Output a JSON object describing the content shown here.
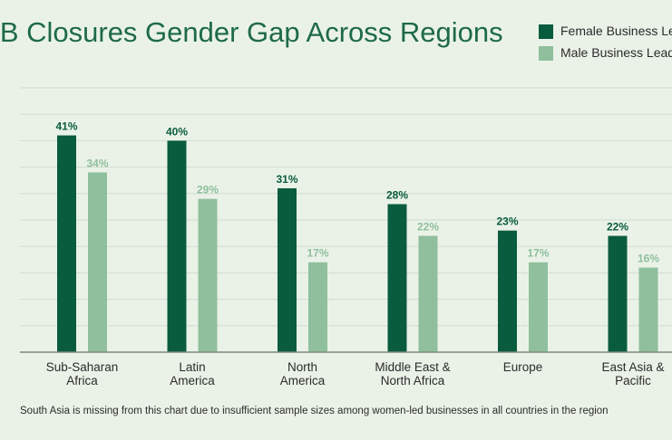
{
  "chart_data": {
    "type": "bar",
    "title": "MB Closures Gender Gap Across Regions",
    "categories": [
      [
        "Sub-Saharan",
        "Africa"
      ],
      [
        "Latin",
        "America"
      ],
      [
        "North",
        "America"
      ],
      [
        "Middle East &",
        "North Africa"
      ],
      [
        "Europe"
      ],
      [
        "East Asia &",
        "Pacific"
      ]
    ],
    "series": [
      {
        "name": "Female Business Lea",
        "color": "#0a5c3e",
        "values": [
          41,
          40,
          31,
          28,
          23,
          22
        ],
        "labels": [
          "41%",
          "40%",
          "31%",
          "28%",
          "23%",
          "22%"
        ]
      },
      {
        "name": "Male Business Leade",
        "color": "#8fbf9c",
        "values": [
          34,
          29,
          17,
          22,
          17,
          16
        ],
        "labels": [
          "34%",
          "29%",
          "17%",
          "22%",
          "17%",
          "16%"
        ]
      }
    ],
    "ylim": [
      0,
      50
    ],
    "grid": true,
    "legend": "top-right",
    "footnote": "South Asia is missing from this chart due to insufficient sample sizes among women-led businesses in all countries in the region"
  }
}
